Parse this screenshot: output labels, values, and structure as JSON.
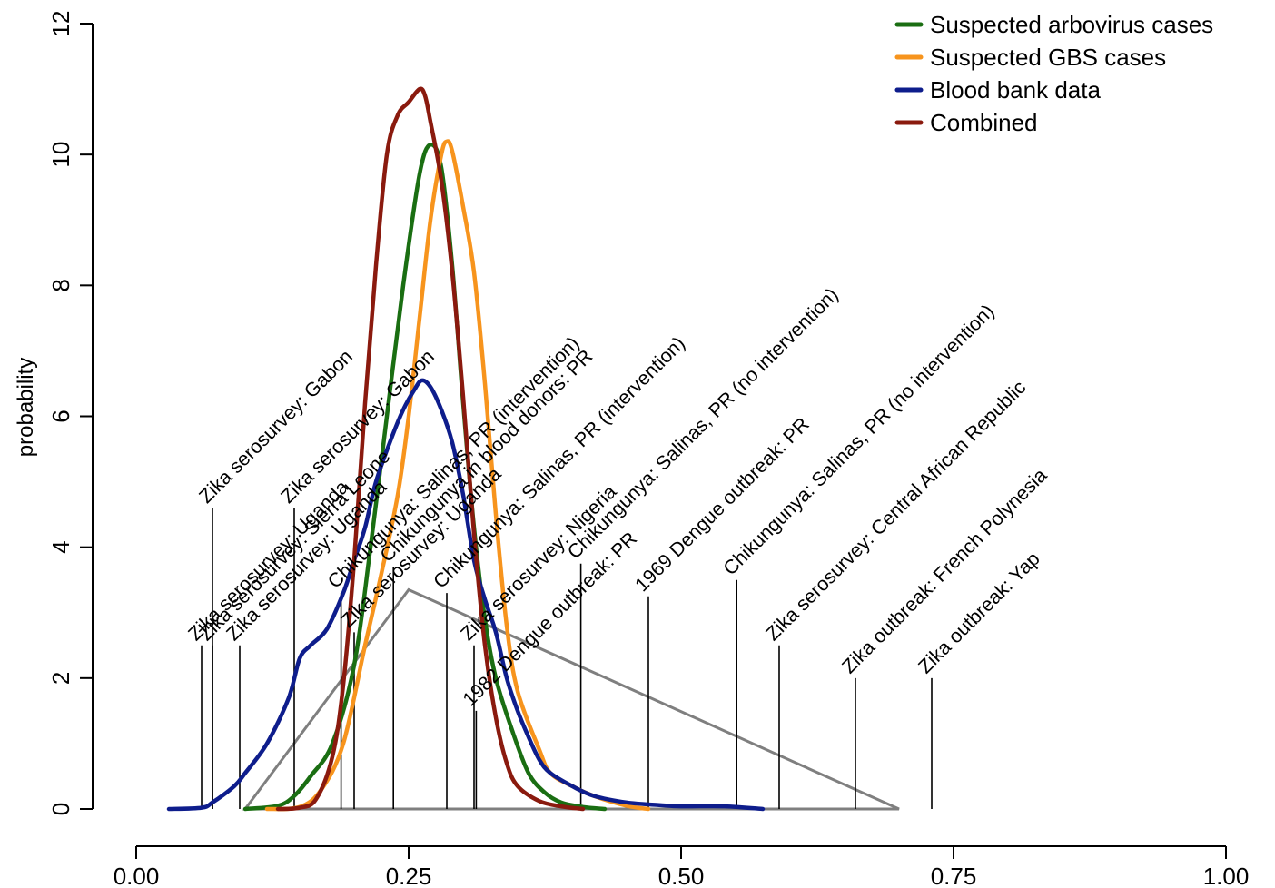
{
  "chart_data": {
    "type": "line",
    "title": "",
    "xlabel": "",
    "ylabel": "probability",
    "xlim": [
      0,
      1
    ],
    "ylim": [
      0,
      12
    ],
    "x_ticks": [
      "0.00",
      "0.25",
      "0.50",
      "0.75",
      "1.00"
    ],
    "y_ticks": [
      "0",
      "2",
      "4",
      "6",
      "8",
      "10",
      "12"
    ],
    "grid": false,
    "legend_position": "top-right",
    "colors": {
      "arbovirus": "#1a6e12",
      "gbs": "#f7941d",
      "blood": "#0e1d8c",
      "combined": "#8a1a0e",
      "triangle": "#7f7f7f",
      "annotation": "#000000"
    },
    "series": [
      {
        "name": "Suspected arbovirus cases",
        "color": "#1a6e12",
        "points": [
          [
            0.1,
            0
          ],
          [
            0.13,
            0.05
          ],
          [
            0.145,
            0.2
          ],
          [
            0.16,
            0.5
          ],
          [
            0.18,
            1.0
          ],
          [
            0.2,
            2.2
          ],
          [
            0.215,
            4.0
          ],
          [
            0.23,
            6.0
          ],
          [
            0.245,
            8.0
          ],
          [
            0.26,
            9.7
          ],
          [
            0.27,
            10.15
          ],
          [
            0.28,
            9.8
          ],
          [
            0.29,
            8.3
          ],
          [
            0.3,
            6.2
          ],
          [
            0.31,
            4.3
          ],
          [
            0.32,
            2.9
          ],
          [
            0.33,
            2.0
          ],
          [
            0.345,
            1.2
          ],
          [
            0.36,
            0.55
          ],
          [
            0.375,
            0.25
          ],
          [
            0.39,
            0.1
          ],
          [
            0.41,
            0.03
          ],
          [
            0.43,
            0
          ]
        ]
      },
      {
        "name": "Suspected GBS cases",
        "color": "#f7941d",
        "points": [
          [
            0.12,
            0
          ],
          [
            0.15,
            0.03
          ],
          [
            0.17,
            0.3
          ],
          [
            0.19,
            1.0
          ],
          [
            0.21,
            2.5
          ],
          [
            0.225,
            3.6
          ],
          [
            0.24,
            4.8
          ],
          [
            0.25,
            6.0
          ],
          [
            0.26,
            7.5
          ],
          [
            0.27,
            9.0
          ],
          [
            0.28,
            10.0
          ],
          [
            0.285,
            10.2
          ],
          [
            0.29,
            10.05
          ],
          [
            0.3,
            9.2
          ],
          [
            0.31,
            8.2
          ],
          [
            0.32,
            6.5
          ],
          [
            0.33,
            4.5
          ],
          [
            0.34,
            2.8
          ],
          [
            0.35,
            1.8
          ],
          [
            0.37,
            0.9
          ],
          [
            0.38,
            0.55
          ],
          [
            0.4,
            0.35
          ],
          [
            0.42,
            0.2
          ],
          [
            0.45,
            0.05
          ],
          [
            0.47,
            0
          ]
        ]
      },
      {
        "name": "Blood bank data",
        "color": "#0e1d8c",
        "points": [
          [
            0.03,
            0
          ],
          [
            0.06,
            0.02
          ],
          [
            0.07,
            0.1
          ],
          [
            0.09,
            0.35
          ],
          [
            0.1,
            0.55
          ],
          [
            0.12,
            1.0
          ],
          [
            0.14,
            1.7
          ],
          [
            0.15,
            2.3
          ],
          [
            0.16,
            2.5
          ],
          [
            0.175,
            2.75
          ],
          [
            0.19,
            3.3
          ],
          [
            0.2,
            3.8
          ],
          [
            0.21,
            4.3
          ],
          [
            0.22,
            5.0
          ],
          [
            0.235,
            5.7
          ],
          [
            0.245,
            6.1
          ],
          [
            0.255,
            6.4
          ],
          [
            0.262,
            6.55
          ],
          [
            0.27,
            6.45
          ],
          [
            0.28,
            6.1
          ],
          [
            0.29,
            5.6
          ],
          [
            0.3,
            4.8
          ],
          [
            0.31,
            3.8
          ],
          [
            0.32,
            3.2
          ],
          [
            0.33,
            2.7
          ],
          [
            0.34,
            2.0
          ],
          [
            0.35,
            1.5
          ],
          [
            0.36,
            1.1
          ],
          [
            0.37,
            0.75
          ],
          [
            0.38,
            0.55
          ],
          [
            0.4,
            0.35
          ],
          [
            0.42,
            0.2
          ],
          [
            0.45,
            0.1
          ],
          [
            0.48,
            0.06
          ],
          [
            0.5,
            0.04
          ],
          [
            0.54,
            0.04
          ],
          [
            0.575,
            0
          ]
        ]
      },
      {
        "name": "Combined",
        "color": "#8a1a0e",
        "points": [
          [
            0.13,
            0
          ],
          [
            0.15,
            0.02
          ],
          [
            0.165,
            0.15
          ],
          [
            0.18,
            0.8
          ],
          [
            0.19,
            1.9
          ],
          [
            0.2,
            3.8
          ],
          [
            0.21,
            6.2
          ],
          [
            0.22,
            8.3
          ],
          [
            0.23,
            10.0
          ],
          [
            0.24,
            10.6
          ],
          [
            0.25,
            10.8
          ],
          [
            0.26,
            11.0
          ],
          [
            0.265,
            10.9
          ],
          [
            0.27,
            10.5
          ],
          [
            0.28,
            9.6
          ],
          [
            0.29,
            8.2
          ],
          [
            0.3,
            6.3
          ],
          [
            0.31,
            4.2
          ],
          [
            0.32,
            2.5
          ],
          [
            0.33,
            1.4
          ],
          [
            0.34,
            0.7
          ],
          [
            0.35,
            0.35
          ],
          [
            0.37,
            0.12
          ],
          [
            0.39,
            0.04
          ],
          [
            0.41,
            0
          ]
        ]
      }
    ],
    "triangle": {
      "color": "#7f7f7f",
      "points": [
        [
          0.1,
          0
        ],
        [
          0.25,
          3.35
        ],
        [
          0.7,
          0
        ]
      ]
    },
    "annotations": [
      {
        "x": 0.06,
        "y": 2.5,
        "label": "Zika serosurvey: Uganda"
      },
      {
        "x": 0.07,
        "y": 4.6,
        "label": "Zika serosurvey: Gabon"
      },
      {
        "x": 0.07,
        "y": 2.5,
        "label": "Zika serosurvey: Sierra Leone"
      },
      {
        "x": 0.095,
        "y": 2.5,
        "label": "Zika serosurvey: Uganda"
      },
      {
        "x": 0.145,
        "y": 4.6,
        "label": "Zika serosurvey: Gabon"
      },
      {
        "x": 0.188,
        "y": 3.3,
        "label": "Chikungunya: Salinas, PR (intervention)"
      },
      {
        "x": 0.2,
        "y": 2.7,
        "label": "Zika serosurvey: Uganda"
      },
      {
        "x": 0.236,
        "y": 3.7,
        "label": "Chikungunya in blood donors: PR"
      },
      {
        "x": 0.285,
        "y": 3.3,
        "label": "Chikungunya: Salinas, PR (intervention)"
      },
      {
        "x": 0.31,
        "y": 2.5,
        "label": "Zika serosurvey: Nigeria"
      },
      {
        "x": 0.312,
        "y": 1.5,
        "label": "1982 Dengue outbreak: PR"
      },
      {
        "x": 0.408,
        "y": 3.75,
        "label": "Chikungunya: Salinas, PR (no intervention)"
      },
      {
        "x": 0.47,
        "y": 3.25,
        "label": "1969 Dengue outbreak: PR"
      },
      {
        "x": 0.551,
        "y": 3.5,
        "label": "Chikungunya: Salinas, PR (no intervention)"
      },
      {
        "x": 0.59,
        "y": 2.5,
        "label": "Zika serosurvey: Central African Republic"
      },
      {
        "x": 0.66,
        "y": 2.0,
        "label": "Zika outbreak: French Polynesia"
      },
      {
        "x": 0.73,
        "y": 2.0,
        "label": "Zika outbreak: Yap"
      }
    ]
  }
}
